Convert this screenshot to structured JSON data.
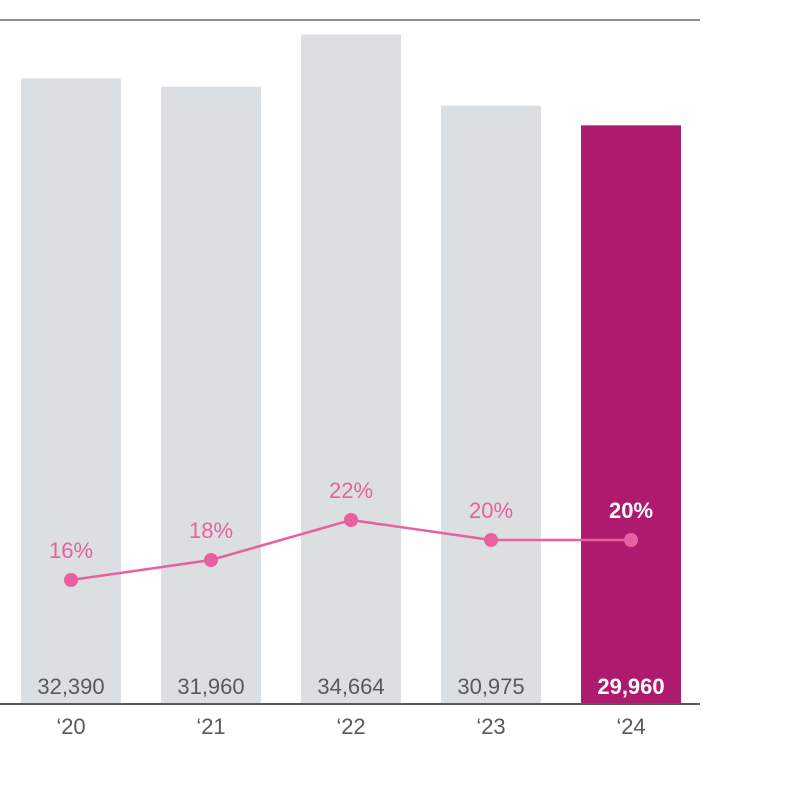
{
  "chart_data": {
    "type": "bar",
    "categories": [
      "‘20",
      "‘21",
      "‘22",
      "‘23",
      "‘24"
    ],
    "values": [
      32390,
      31960,
      34664,
      30975,
      29960
    ],
    "value_labels": [
      "32,390",
      "31,960",
      "34,664",
      "30,975",
      "29,960"
    ],
    "highlight_index": 4,
    "ylim": [
      0,
      35000
    ],
    "line_series": {
      "type": "line",
      "values": [
        16,
        18,
        22,
        20,
        20
      ],
      "labels": [
        "16%",
        "18%",
        "22%",
        "20%",
        "20%"
      ],
      "unit": "%"
    },
    "grid": false,
    "legend": "none"
  },
  "colors": {
    "bar": "#dcdfe1",
    "bar_highlight": "#ae1a6e",
    "line": "#e8609f",
    "axis": "#58595b",
    "top_rule": "#222222",
    "text": "#58595b",
    "text_highlight": "#ffffff"
  }
}
